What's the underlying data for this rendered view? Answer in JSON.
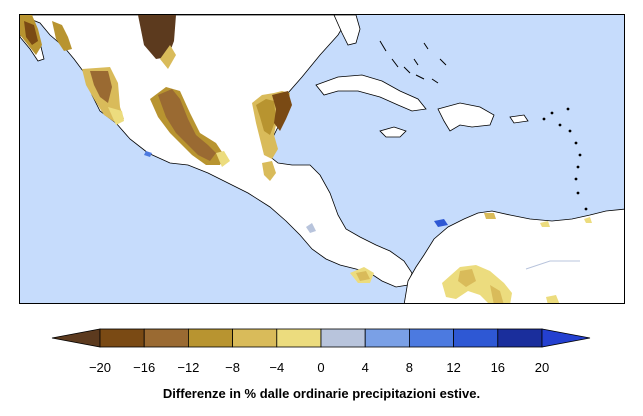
{
  "map": {
    "ocean_color": "#c6dcfc",
    "land_color": "#ffffff",
    "coast_color": "#000000"
  },
  "legend": {
    "bins": [
      {
        "from": -24,
        "to": -20,
        "color": "#5c3a1e"
      },
      {
        "from": -20,
        "to": -16,
        "color": "#7a4a14"
      },
      {
        "from": -16,
        "to": -12,
        "color": "#9a6a32"
      },
      {
        "from": -12,
        "to": -8,
        "color": "#b89430"
      },
      {
        "from": -8,
        "to": -4,
        "color": "#d9bb5a"
      },
      {
        "from": -4,
        "to": 0,
        "color": "#ecdc7e"
      },
      {
        "from": 0,
        "to": 4,
        "color": "#b8c4dc"
      },
      {
        "from": 4,
        "to": 8,
        "color": "#7aa0e6"
      },
      {
        "from": 8,
        "to": 12,
        "color": "#4c7ae0"
      },
      {
        "from": 12,
        "to": 16,
        "color": "#2e58d4"
      },
      {
        "from": 16,
        "to": 20,
        "color": "#1a2e9c"
      },
      {
        "from": 20,
        "to": 24,
        "color": "#2440d0"
      }
    ],
    "tick_labels": [
      "−20",
      "−16",
      "−12",
      "−8",
      "−4",
      "0",
      "4",
      "8",
      "12",
      "16",
      "20"
    ]
  },
  "caption": "Differenze in % dalle ordinarie precipitazioni estive."
}
